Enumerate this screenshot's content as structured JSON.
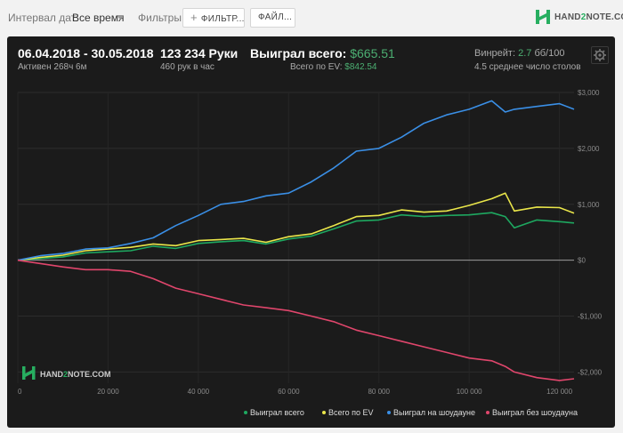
{
  "filters_bar": {
    "date_interval_label": "Интервал дат:",
    "date_interval_value": "Все время",
    "filters_label": "Фильтры:",
    "filter_button_label": "ФИЛЬТР...",
    "file_button_label": "ФАЙЛ...",
    "logo": {
      "prefix": "HAND",
      "two": "2",
      "suffix": "NOTE.COM"
    }
  },
  "summary": {
    "date_range": "06.04.2018 - 30.05.2018",
    "active_time": "Активен 268ч 6м",
    "hands": "123 234 Руки",
    "hands_per_hour": "460 рук в час",
    "won_total_label": "Выиграл всего:",
    "won_total_value": "$665.51",
    "ev_label": "Всего по EV:",
    "ev_value": "$842.54",
    "winrate_label": "Винрейт:",
    "winrate_value": "2.7",
    "winrate_suffix": "бб/100",
    "avg_tables": "4.5 среднее число столов"
  },
  "chart_watermark": {
    "prefix": "HAND",
    "two": "2",
    "suffix": "NOTE.COM"
  },
  "colors": {
    "won_total": "#1ea860",
    "ev_total": "#eae64a",
    "showdown": "#3a8fe6",
    "non_showdown": "#e0466c",
    "accent": "#4caf72"
  },
  "chart_data": {
    "type": "line",
    "xlim": [
      0,
      123234
    ],
    "ylim": [
      -2200,
      3000
    ],
    "x_ticks": [
      0,
      20000,
      40000,
      60000,
      80000,
      100000,
      120000
    ],
    "x_tick_labels": [
      "0",
      "20 000",
      "40 000",
      "60 000",
      "80 000",
      "100 000",
      "120 000"
    ],
    "y_ticks": [
      -2000,
      -1000,
      0,
      1000,
      2000,
      3000
    ],
    "y_tick_labels": [
      "-$2,000",
      "-$1,000",
      "$0",
      "$1,000",
      "$2,000",
      "$3,000"
    ],
    "legend_position": "bottom-right",
    "x": [
      0,
      5000,
      10000,
      15000,
      20000,
      25000,
      30000,
      35000,
      40000,
      45000,
      50000,
      55000,
      60000,
      65000,
      70000,
      75000,
      80000,
      85000,
      90000,
      95000,
      100000,
      105000,
      108000,
      110000,
      115000,
      120000,
      123234
    ],
    "series": [
      {
        "name": "Выиграл всего",
        "color_key": "won_total",
        "values": [
          0,
          30,
          60,
          130,
          150,
          170,
          250,
          210,
          300,
          330,
          350,
          290,
          380,
          430,
          560,
          700,
          720,
          810,
          780,
          800,
          810,
          850,
          780,
          580,
          720,
          690,
          665.51
        ]
      },
      {
        "name": "Всего по EV",
        "color_key": "ev_total",
        "values": [
          0,
          50,
          90,
          170,
          200,
          230,
          290,
          260,
          350,
          370,
          390,
          320,
          420,
          470,
          620,
          780,
          800,
          900,
          860,
          880,
          980,
          1100,
          1200,
          880,
          950,
          940,
          842.54
        ]
      },
      {
        "name": "Выиграл на шоудауне",
        "color_key": "showdown",
        "values": [
          0,
          80,
          120,
          200,
          220,
          300,
          400,
          620,
          800,
          1000,
          1050,
          1150,
          1200,
          1400,
          1650,
          1950,
          2000,
          2200,
          2450,
          2600,
          2700,
          2850,
          2650,
          2700,
          2750,
          2800,
          2700
        ]
      },
      {
        "name": "Выиграл без шоудауна",
        "color_key": "non_showdown",
        "values": [
          0,
          -60,
          -120,
          -170,
          -170,
          -200,
          -330,
          -500,
          -600,
          -700,
          -800,
          -850,
          -900,
          -1000,
          -1100,
          -1250,
          -1350,
          -1450,
          -1550,
          -1650,
          -1750,
          -1800,
          -1900,
          -2000,
          -2100,
          -2150,
          -2120
        ]
      }
    ]
  }
}
